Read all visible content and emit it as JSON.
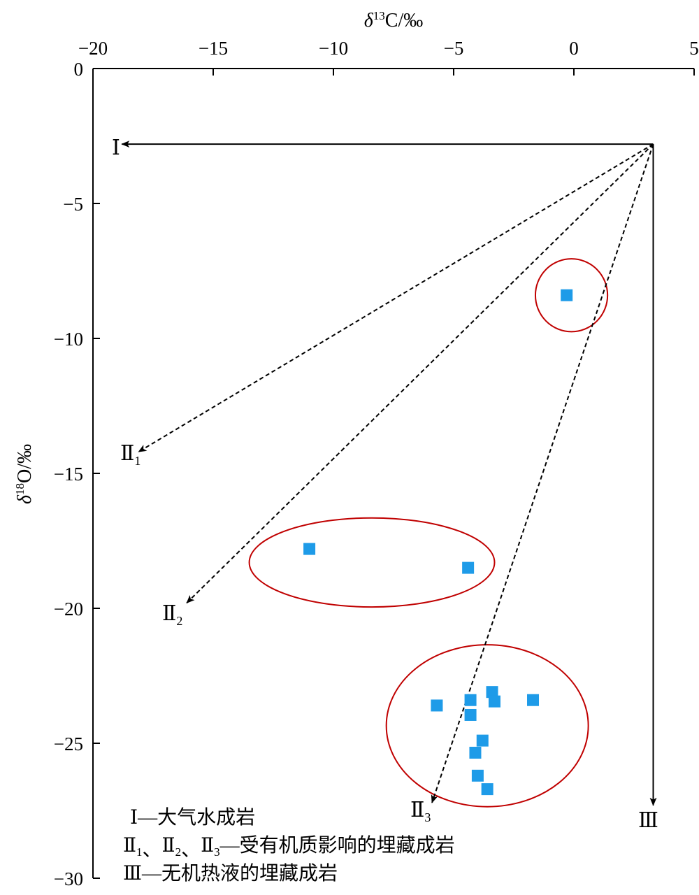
{
  "chart_data": {
    "type": "scatter",
    "xlabel_parts": {
      "delta": "δ",
      "sup": "13",
      "rest": "C/‰"
    },
    "ylabel_parts": {
      "delta": "δ",
      "sup": "18",
      "rest": "O/‰"
    },
    "xlim": [
      -20,
      5
    ],
    "ylim": [
      -30,
      0
    ],
    "x_ticks": [
      -20,
      -15,
      -10,
      -5,
      0,
      5
    ],
    "x_tick_labels": [
      "−20",
      "−15",
      "−10",
      "−5",
      "0",
      "5"
    ],
    "y_ticks": [
      0,
      -5,
      -10,
      -15,
      -20,
      -25,
      -30
    ],
    "y_tick_labels": [
      "0",
      "−5",
      "−10",
      "−15",
      "−20",
      "−25",
      "−30"
    ],
    "points": [
      {
        "x": -0.3,
        "y": -8.4
      },
      {
        "x": -11.0,
        "y": -17.8
      },
      {
        "x": -4.4,
        "y": -18.5
      },
      {
        "x": -5.7,
        "y": -23.6
      },
      {
        "x": -4.3,
        "y": -23.4
      },
      {
        "x": -4.3,
        "y": -23.95
      },
      {
        "x": -3.4,
        "y": -23.1
      },
      {
        "x": -3.3,
        "y": -23.45
      },
      {
        "x": -1.7,
        "y": -23.4
      },
      {
        "x": -3.8,
        "y": -24.9
      },
      {
        "x": -4.1,
        "y": -25.35
      },
      {
        "x": -4.0,
        "y": -26.2
      },
      {
        "x": -3.6,
        "y": -26.7
      }
    ],
    "marker_color": "#1e9be8",
    "trend_origin": {
      "x": 3.3,
      "y": -2.8
    },
    "trends": [
      {
        "id": "I",
        "label": "Ⅰ",
        "sub": "",
        "to": {
          "x": -18.8,
          "y": -2.8
        },
        "style": "solid"
      },
      {
        "id": "II1",
        "label": "Ⅱ",
        "sub": "1",
        "to": {
          "x": -18.1,
          "y": -14.2
        },
        "style": "dashed"
      },
      {
        "id": "II2",
        "label": "Ⅱ",
        "sub": "2",
        "to": {
          "x": -16.1,
          "y": -19.8
        },
        "style": "dashed"
      },
      {
        "id": "II3",
        "label": "Ⅱ",
        "sub": "3",
        "to": {
          "x": -5.9,
          "y": -27.2
        },
        "style": "dashed"
      },
      {
        "id": "III",
        "label": "Ⅲ",
        "sub": "",
        "to": {
          "x": 3.3,
          "y": -27.3
        },
        "style": "solid"
      }
    ],
    "clusters": [
      {
        "cx": -0.1,
        "cy": -8.4,
        "rx": 1.5,
        "ry": 1.35
      },
      {
        "cx": -8.4,
        "cy": -18.3,
        "rx": 5.1,
        "ry": 1.65
      },
      {
        "cx": -3.6,
        "cy": -24.35,
        "rx": 4.2,
        "ry": 3.0
      }
    ],
    "cluster_color": "#c00000",
    "legend": [
      {
        "id": "I",
        "roman": "Ⅰ",
        "subs": [],
        "text": "—大气水成岩"
      },
      {
        "id": "II",
        "roman": "Ⅱ",
        "subs": [
          "1",
          "2",
          "3"
        ],
        "text": "—受有机质影响的埋藏成岩"
      },
      {
        "id": "III",
        "roman": "Ⅲ",
        "subs": [],
        "text": "—无机热液的埋藏成岩"
      }
    ],
    "legend_position": "bottom-left"
  }
}
